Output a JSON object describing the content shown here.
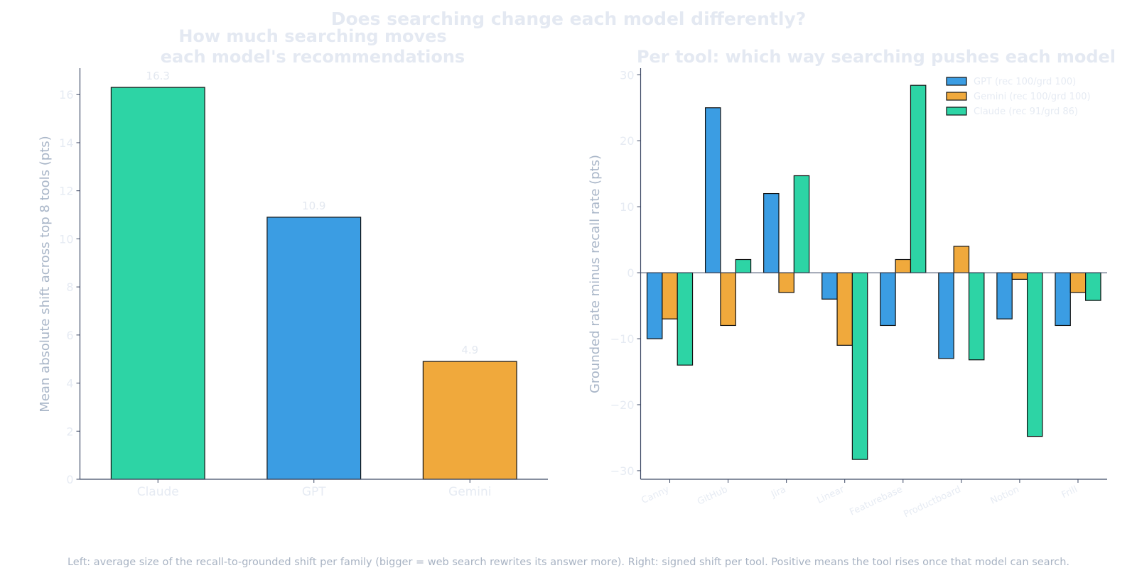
{
  "suptitle": "Does searching change each model differently?",
  "caption": "Left: average size of the recall-to-grounded shift per family (bigger = web search rewrites its answer more). Right: signed shift per tool. Positive means the tool rises once that model can search.",
  "colors": {
    "claude": "#2dd4a5",
    "gpt": "#3b9de3",
    "gemini": "#f0a93c",
    "axis": "#3e4a66",
    "edge": "#111111"
  },
  "chart_data": [
    {
      "type": "bar",
      "title_lines": [
        "How much searching moves",
        "each model's recommendations"
      ],
      "xlabel": "",
      "ylabel": "Mean absolute shift across top 8 tools (pts)",
      "categories": [
        "Claude",
        "GPT",
        "Gemini"
      ],
      "values": [
        16.3,
        10.9,
        4.9
      ],
      "value_labels": [
        "16.3",
        "10.9",
        "4.9"
      ],
      "bar_colors": [
        "#2dd4a5",
        "#3b9de3",
        "#f0a93c"
      ],
      "ylim": [
        0,
        17.1
      ],
      "yticks": [
        0,
        2,
        4,
        6,
        8,
        10,
        12,
        14,
        16
      ],
      "grid": false
    },
    {
      "type": "bar",
      "title": "Per tool: which way searching pushes each model",
      "xlabel": "",
      "ylabel": "Grounded rate minus recall rate (pts)",
      "categories": [
        "Canny",
        "GitHub",
        "Jira",
        "Linear",
        "Featurebase",
        "Productboard",
        "Notion",
        "Frill"
      ],
      "series": [
        {
          "name": "GPT (rec 100/grd 100)",
          "color": "#3b9de3",
          "values": [
            -10,
            25,
            12,
            -4,
            -8,
            -13,
            -7,
            -8
          ]
        },
        {
          "name": "Gemini (rec 100/grd 100)",
          "color": "#f0a93c",
          "values": [
            -7,
            -8,
            -3,
            -11,
            2,
            4,
            -1,
            -3
          ]
        },
        {
          "name": "Claude (rec 91/grd 86)",
          "color": "#2dd4a5",
          "values": [
            -14,
            2,
            14.7,
            -28.3,
            28.4,
            -13.2,
            -24.8,
            -4.2
          ]
        }
      ],
      "ylim": [
        -31.3,
        31
      ],
      "yticks": [
        -30,
        -20,
        -10,
        0,
        10,
        20,
        30
      ],
      "ytick_labels": [
        "−30",
        "−20",
        "−10",
        "0",
        "10",
        "20",
        "30"
      ],
      "legend": "top-right",
      "grid": false
    }
  ]
}
